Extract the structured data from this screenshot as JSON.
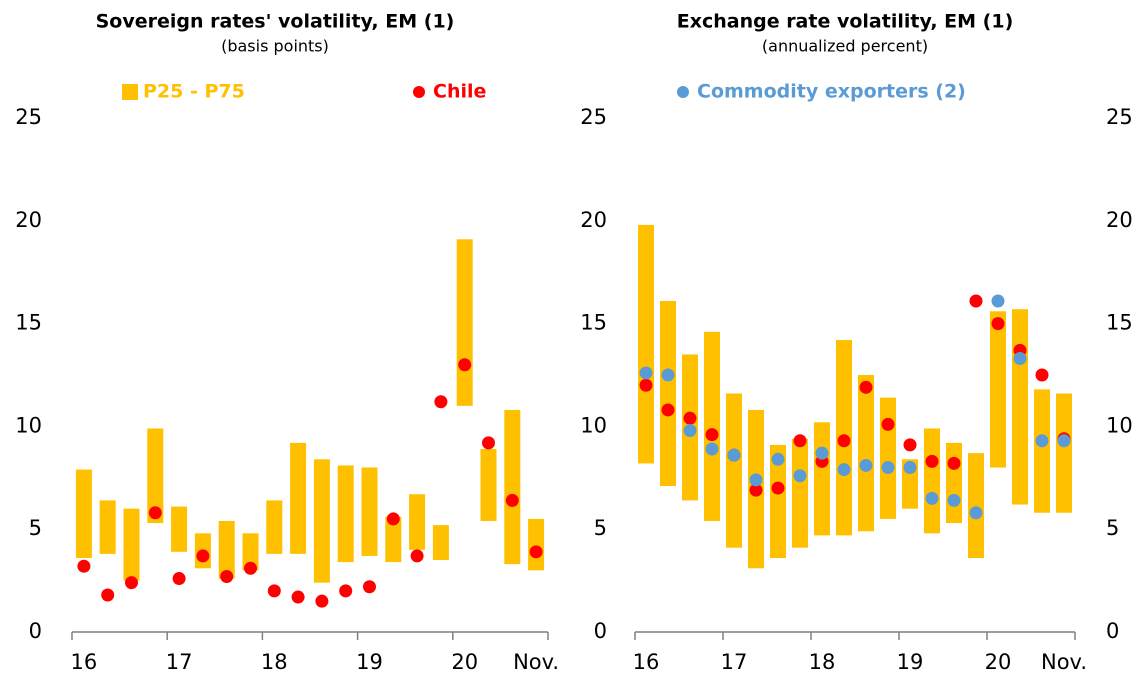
{
  "chart_data": [
    {
      "type": "range_bar",
      "title": "Sovereign rates' volatility, EM (1)",
      "subtitle": "(basis points)",
      "categories": [
        "16",
        null,
        null,
        null,
        "17",
        null,
        null,
        null,
        "18",
        null,
        null,
        null,
        "19",
        null,
        null,
        null,
        "20",
        null,
        null,
        "Nov."
      ],
      "series": [
        {
          "name": "P25 - P75",
          "color": "#ffc000",
          "low": [
            3.6,
            3.8,
            2.5,
            5.3,
            3.9,
            3.1,
            2.6,
            3.0,
            3.8,
            3.8,
            2.4,
            3.4,
            3.7,
            3.4,
            4.0,
            3.5,
            11.0,
            5.4,
            3.3,
            3.0
          ],
          "high": [
            7.9,
            6.4,
            6.0,
            9.9,
            6.1,
            4.8,
            5.4,
            4.8,
            6.4,
            9.2,
            8.4,
            8.1,
            8.0,
            5.6,
            6.7,
            5.2,
            19.1,
            8.9,
            10.8,
            5.5
          ]
        },
        {
          "name": "Chile",
          "color": "#ff0000",
          "values": [
            3.2,
            1.8,
            2.4,
            5.8,
            2.6,
            3.7,
            2.7,
            3.1,
            2.0,
            1.7,
            1.5,
            2.0,
            2.2,
            5.5,
            3.7,
            11.2,
            13.0,
            9.2,
            6.4,
            3.9
          ]
        }
      ],
      "ylim": [
        0,
        25
      ],
      "yticks": [
        0,
        5,
        10,
        15,
        20,
        25
      ]
    },
    {
      "type": "range_bar",
      "title": "Exchange rate volatility, EM (1)",
      "subtitle": "(annualized percent)",
      "categories": [
        "16",
        null,
        null,
        null,
        "17",
        null,
        null,
        null,
        "18",
        null,
        null,
        null,
        "19",
        null,
        null,
        null,
        "20",
        null,
        null,
        "Nov."
      ],
      "series": [
        {
          "color": "#ffc000",
          "low": [
            8.2,
            7.1,
            6.4,
            5.4,
            4.1,
            3.1,
            3.6,
            4.1,
            4.7,
            4.7,
            4.9,
            5.5,
            6.0,
            4.8,
            5.3,
            3.6,
            8.0,
            6.2,
            5.8,
            5.8
          ],
          "high": [
            19.8,
            16.1,
            13.5,
            14.6,
            11.6,
            10.8,
            9.1,
            9.4,
            10.2,
            14.2,
            12.5,
            11.4,
            8.4,
            9.9,
            9.2,
            8.7,
            15.6,
            15.7,
            11.8,
            11.6
          ]
        },
        {
          "color": "#ff0000",
          "values": [
            12.0,
            10.8,
            10.4,
            9.6,
            8.6,
            6.9,
            7.0,
            9.3,
            8.3,
            9.3,
            11.9,
            10.1,
            9.1,
            8.3,
            8.2,
            16.1,
            15.0,
            13.7,
            12.5,
            9.4
          ]
        },
        {
          "name": "Commodity exporters (2)",
          "color": "#5b9bd5",
          "values": [
            12.6,
            12.5,
            9.8,
            8.9,
            8.6,
            7.4,
            8.4,
            7.6,
            8.7,
            7.9,
            8.1,
            8.0,
            8.0,
            6.5,
            6.4,
            5.8,
            16.1,
            13.3,
            9.3,
            9.3
          ]
        }
      ],
      "ylim": [
        0,
        25
      ],
      "yticks": [
        0,
        5,
        10,
        15,
        20,
        25
      ],
      "y2lim": [
        0,
        25
      ],
      "y2ticks": [
        0,
        5,
        10,
        15,
        20,
        25
      ]
    }
  ]
}
